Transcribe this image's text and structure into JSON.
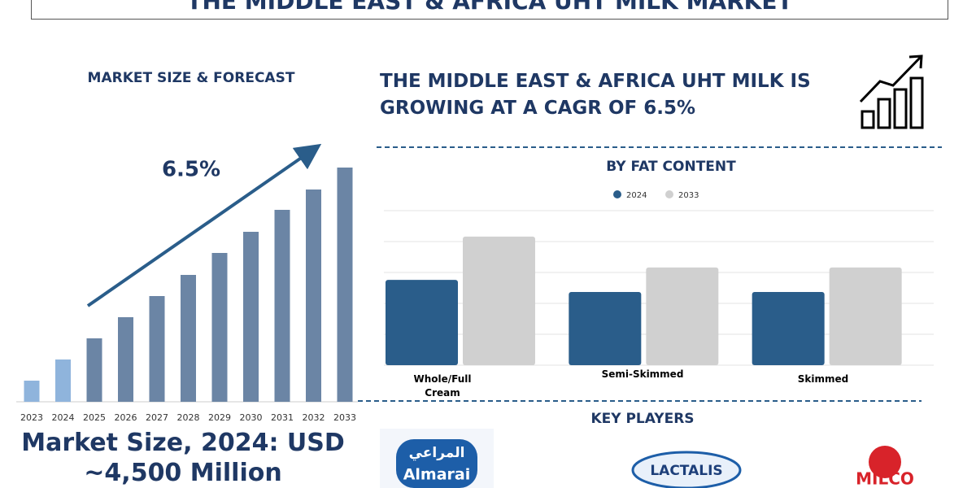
{
  "header": {
    "title": "THE MIDDLE EAST & AFRICA UHT MILK MARKET"
  },
  "headline": "THE MIDDLE EAST & AFRICA UHT MILK IS GROWING AT A CAGR OF 6.5%",
  "market_size": "Market Size, 2024: USD ~4,500 Million",
  "chart_data": [
    {
      "type": "bar",
      "title": "MARKET SIZE & FORECAST",
      "annotation": "6.5%",
      "categories": [
        "2023",
        "2024",
        "2025",
        "2026",
        "2027",
        "2028",
        "2029",
        "2030",
        "2031",
        "2032",
        "2033"
      ],
      "values": [
        26,
        52,
        78,
        104,
        130,
        156,
        183,
        209,
        236,
        261,
        288
      ],
      "colors": [
        "#8fb4dc",
        "#8fb4dc",
        "#6b85a5",
        "#6b85a5",
        "#6b85a5",
        "#6b85a5",
        "#6b85a5",
        "#6b85a5",
        "#6b85a5",
        "#6b85a5",
        "#6b85a5"
      ],
      "ylim": [
        0,
        300
      ]
    },
    {
      "type": "grouped-bar",
      "title": "BY FAT CONTENT",
      "categories": [
        "Whole/Full Cream",
        "Semi-Skimmed",
        "Skimmed"
      ],
      "series": [
        {
          "name": "2024",
          "color": "#2a5d8a",
          "values": [
            2.76,
            2.37,
            2.37
          ]
        },
        {
          "name": "2033",
          "color": "#d0d0d0",
          "values": [
            4.16,
            3.16,
            3.16
          ]
        }
      ],
      "ylim": [
        0,
        5
      ],
      "grid": true
    }
  ],
  "key_players": {
    "title": "KEY PLAYERS",
    "logos": [
      "المراعي",
      "Almarai",
      "LACTALIS",
      "MILCO"
    ]
  }
}
